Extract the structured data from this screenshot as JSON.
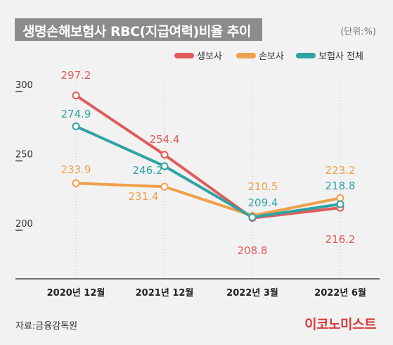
{
  "header": {
    "title": "생명손해보험사 RBC(지급여력)비율 추이",
    "unit": "(단위:%)"
  },
  "footer": {
    "source": "자료:금융감독원",
    "brand": "이코노미스트"
  },
  "colors": {
    "life": "#e05c5c",
    "nonlife": "#f0a04b",
    "total": "#2fa3a3",
    "axis": "#444444",
    "grid": "#bbbbbb"
  },
  "chart_data": {
    "type": "line",
    "categories": [
      "2020년 12월",
      "2021년 12월",
      "2022년 3월",
      "2022년 6월"
    ],
    "ylim": [
      150,
      300
    ],
    "yticks": [
      200,
      250,
      300
    ],
    "grid": "dotted vertical lines at categories",
    "legend": "top-right",
    "series": [
      {
        "name": "생보사",
        "values": [
          297.2,
          254.4,
          208.8,
          216.2
        ],
        "labels": [
          "297.2",
          "254.4",
          "208.8",
          "216.2"
        ]
      },
      {
        "name": "손보사",
        "values": [
          233.9,
          231.4,
          210.5,
          223.2
        ],
        "labels": [
          "233.9",
          "231.4",
          "210.5",
          "223.2"
        ]
      },
      {
        "name": "보험사 전체",
        "values": [
          274.9,
          246.2,
          209.4,
          218.8
        ],
        "labels": [
          "274.9",
          "246.2",
          "209.4",
          "218.8"
        ]
      }
    ]
  }
}
